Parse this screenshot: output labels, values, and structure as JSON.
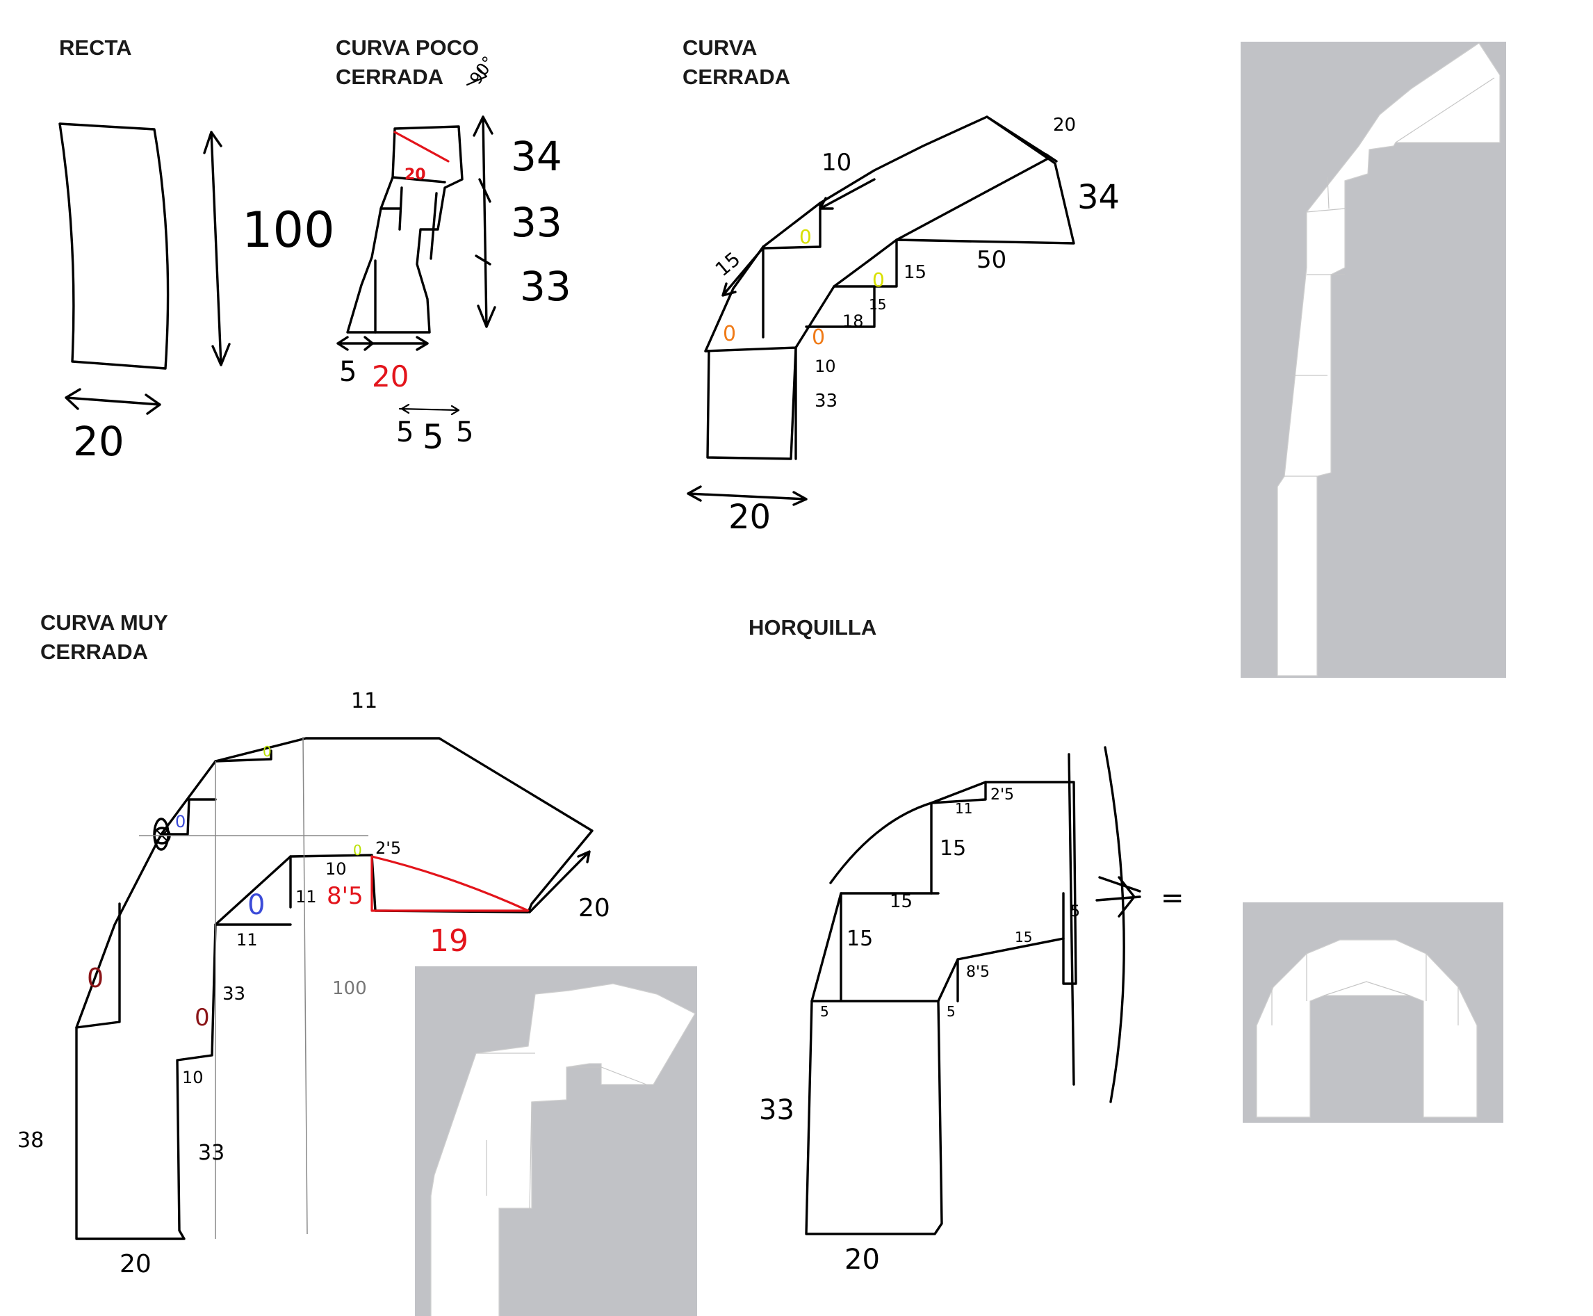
{
  "titles": {
    "recta": "RECTA",
    "curva_poco_cerrada": "CURVA POCO\nCERRADA",
    "curva_cerrada": "CURVA\nCERRADA",
    "curva_muy_cerrada": "CURVA MUY\nCERRADA",
    "horquilla": "HORQUILLA"
  },
  "recta": {
    "length": "100",
    "width": "20"
  },
  "curva_poco_cerrada": {
    "angle": "90°",
    "seg_top": "34",
    "seg_mid": "33",
    "seg_bot": "33",
    "inner_offset": "5",
    "width_red": "20",
    "diag_red": "20",
    "spacing_a": "5",
    "spacing_b": "5",
    "spacing_c": "5"
  },
  "curva_cerrada": {
    "top_arrow": "10",
    "left_arrow": "15",
    "end_width": "20",
    "end_len": "34",
    "inner_long": "50",
    "step_a": "15",
    "step_b": "15",
    "step_c": "18",
    "step_d": "10",
    "base_len": "33",
    "base_width": "20",
    "marks": [
      "0",
      "0",
      "0",
      "0"
    ]
  },
  "curva_muy_cerrada": {
    "top": "11",
    "right_width": "20",
    "red_horizontal": "19",
    "red_vertical": "8'5",
    "step_a": "2'5",
    "step_b": "10",
    "step_c": "11",
    "step_d": "11",
    "left_len": "38",
    "inner_a": "33",
    "inner_b": "33",
    "inner_c": "10",
    "base_width": "20",
    "center": "100",
    "marks": [
      "0",
      "0",
      "0",
      "0",
      "0",
      "0"
    ]
  },
  "horquilla": {
    "top_a": "11",
    "top_b": "2'5",
    "mid_a": "15",
    "mid_b": "15",
    "mid_c": "15",
    "inner_a": "15",
    "inner_b": "8'5",
    "right_step": "5",
    "base_a": "5",
    "base_b": "5",
    "base_len": "33",
    "base_width": "20",
    "equals": "="
  },
  "colors": {
    "red": "#e3141b",
    "yellow": "#d8e000",
    "lime": "#b9e000",
    "orange": "#f07b18",
    "blue": "#3b4bd8",
    "maroon": "#8b1518",
    "preview_bg": "#c1c2c6"
  }
}
